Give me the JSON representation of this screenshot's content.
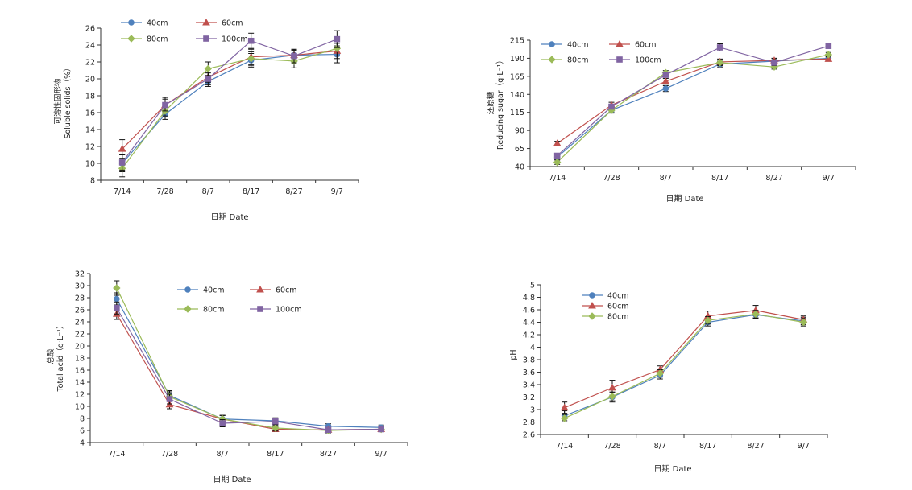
{
  "chart_data": [
    {
      "type": "line",
      "title": "",
      "xlabel": "日期 Date",
      "ylabel_cn": "可溶性固形物",
      "ylabel_en": "Soluble solids（%）",
      "categories": [
        "7/14",
        "7/28",
        "8/7",
        "8/17",
        "8/27",
        "9/7"
      ],
      "ylim": [
        8,
        26
      ],
      "yticks": [
        8,
        10,
        12,
        14,
        16,
        18,
        20,
        22,
        24,
        26
      ],
      "legend_placement": "top-left",
      "series": [
        {
          "name": "40cm",
          "values": [
            10.0,
            15.8,
            19.7,
            22.2,
            22.8,
            22.9
          ],
          "errors": [
            1.0,
            0.6,
            0.6,
            0.8,
            0.6,
            1.0
          ],
          "color": "#4f81bd",
          "marker": "circle"
        },
        {
          "name": "60cm",
          "values": [
            11.7,
            16.9,
            20.2,
            22.6,
            22.8,
            23.3
          ],
          "errors": [
            1.1,
            0.9,
            0.6,
            0.9,
            0.6,
            0.9
          ],
          "color": "#c0504d",
          "marker": "triangle"
        },
        {
          "name": "80cm",
          "values": [
            9.4,
            16.2,
            21.2,
            22.4,
            22.1,
            23.6
          ],
          "errors": [
            1.0,
            0.6,
            0.8,
            0.8,
            0.8,
            0.9
          ],
          "color": "#9bbb59",
          "marker": "diamond"
        },
        {
          "name": "100cm",
          "values": [
            10.1,
            16.9,
            20.0,
            24.5,
            22.7,
            24.7
          ],
          "errors": [
            0.9,
            0.7,
            0.7,
            0.9,
            0.8,
            1.0
          ],
          "color": "#8064a2",
          "marker": "square"
        }
      ]
    },
    {
      "type": "line",
      "title": "",
      "xlabel": "日期 Date",
      "ylabel_cn": "还原糖",
      "ylabel_en": "Reducing sugar（g·L⁻¹）",
      "categories": [
        "7/14",
        "7/28",
        "8/7",
        "8/17",
        "8/27",
        "9/7"
      ],
      "ylim": [
        40,
        215
      ],
      "yticks": [
        40,
        65,
        90,
        115,
        140,
        165,
        190,
        215
      ],
      "legend_placement": "top-left",
      "series": [
        {
          "name": "40cm",
          "values": [
            53,
            118,
            148,
            182,
            186,
            190
          ],
          "errors": [
            3,
            3,
            4,
            4,
            4,
            3
          ],
          "color": "#4f81bd",
          "marker": "circle"
        },
        {
          "name": "60cm",
          "values": [
            72,
            125,
            158,
            185,
            187,
            189
          ],
          "errors": [
            3,
            4,
            4,
            4,
            3,
            3
          ],
          "color": "#c0504d",
          "marker": "triangle"
        },
        {
          "name": "80cm",
          "values": [
            46,
            118,
            170,
            184,
            178,
            195
          ],
          "errors": [
            3,
            4,
            3,
            4,
            3,
            3
          ],
          "color": "#9bbb59",
          "marker": "diamond"
        },
        {
          "name": "100cm",
          "values": [
            55,
            123,
            167,
            205,
            184,
            207
          ],
          "errors": [
            3,
            3,
            3,
            5,
            4,
            3
          ],
          "color": "#8064a2",
          "marker": "square"
        }
      ]
    },
    {
      "type": "line",
      "title": "",
      "xlabel": "日期 Date",
      "ylabel_cn": "总酸",
      "ylabel_en": "Total acid（g·L⁻¹）",
      "categories": [
        "7/14",
        "7/28",
        "8/7",
        "8/17",
        "8/27",
        "9/7"
      ],
      "ylim": [
        4,
        32
      ],
      "yticks": [
        4,
        6,
        8,
        10,
        12,
        14,
        16,
        18,
        20,
        22,
        24,
        26,
        28,
        30,
        32
      ],
      "legend_placement": "top-right",
      "series": [
        {
          "name": "40cm",
          "values": [
            27.8,
            11.8,
            7.9,
            7.6,
            6.7,
            6.5
          ],
          "errors": [
            1.0,
            0.8,
            0.6,
            0.5,
            0.4,
            0.4
          ],
          "color": "#4f81bd",
          "marker": "circle"
        },
        {
          "name": "60cm",
          "values": [
            25.3,
            10.3,
            7.9,
            6.2,
            6.1,
            6.2
          ],
          "errors": [
            0.9,
            0.7,
            0.6,
            0.4,
            0.4,
            0.4
          ],
          "color": "#c0504d",
          "marker": "triangle"
        },
        {
          "name": "80cm",
          "values": [
            29.6,
            11.6,
            7.9,
            6.4,
            6.0,
            6.2
          ],
          "errors": [
            1.2,
            0.8,
            0.6,
            0.5,
            0.4,
            0.4
          ],
          "color": "#9bbb59",
          "marker": "diamond"
        },
        {
          "name": "100cm",
          "values": [
            26.3,
            11.2,
            7.2,
            7.5,
            6.1,
            6.2
          ],
          "errors": [
            1.0,
            0.8,
            0.6,
            0.5,
            0.4,
            0.4
          ],
          "color": "#8064a2",
          "marker": "square"
        }
      ]
    },
    {
      "type": "line",
      "title": "",
      "xlabel": "日期 Date",
      "ylabel_cn": "",
      "ylabel_en": "pH",
      "categories": [
        "7/14",
        "7/28",
        "8/7",
        "8/17",
        "8/27",
        "9/7"
      ],
      "ylim": [
        2.6,
        5.0
      ],
      "yticks": [
        "2.6",
        "2.8",
        "3",
        "3.2",
        "3.4",
        "3.6",
        "3.8",
        "4",
        "4.2",
        "4.4",
        "4.6",
        "4.8",
        "5"
      ],
      "legend_placement": "top-left",
      "series": [
        {
          "name": "40cm",
          "values": [
            2.9,
            3.2,
            3.55,
            4.4,
            4.52,
            4.42
          ],
          "errors": [
            0.08,
            0.08,
            0.06,
            0.06,
            0.06,
            0.06
          ],
          "color": "#4f81bd",
          "marker": "circle"
        },
        {
          "name": "60cm",
          "values": [
            3.03,
            3.35,
            3.64,
            4.5,
            4.59,
            4.44
          ],
          "errors": [
            0.09,
            0.12,
            0.06,
            0.08,
            0.08,
            0.06
          ],
          "color": "#c0504d",
          "marker": "triangle"
        },
        {
          "name": "80cm",
          "values": [
            2.86,
            3.21,
            3.58,
            4.43,
            4.53,
            4.4
          ],
          "errors": [
            0.06,
            0.07,
            0.06,
            0.06,
            0.06,
            0.06
          ],
          "color": "#9bbb59",
          "marker": "diamond"
        }
      ]
    }
  ]
}
